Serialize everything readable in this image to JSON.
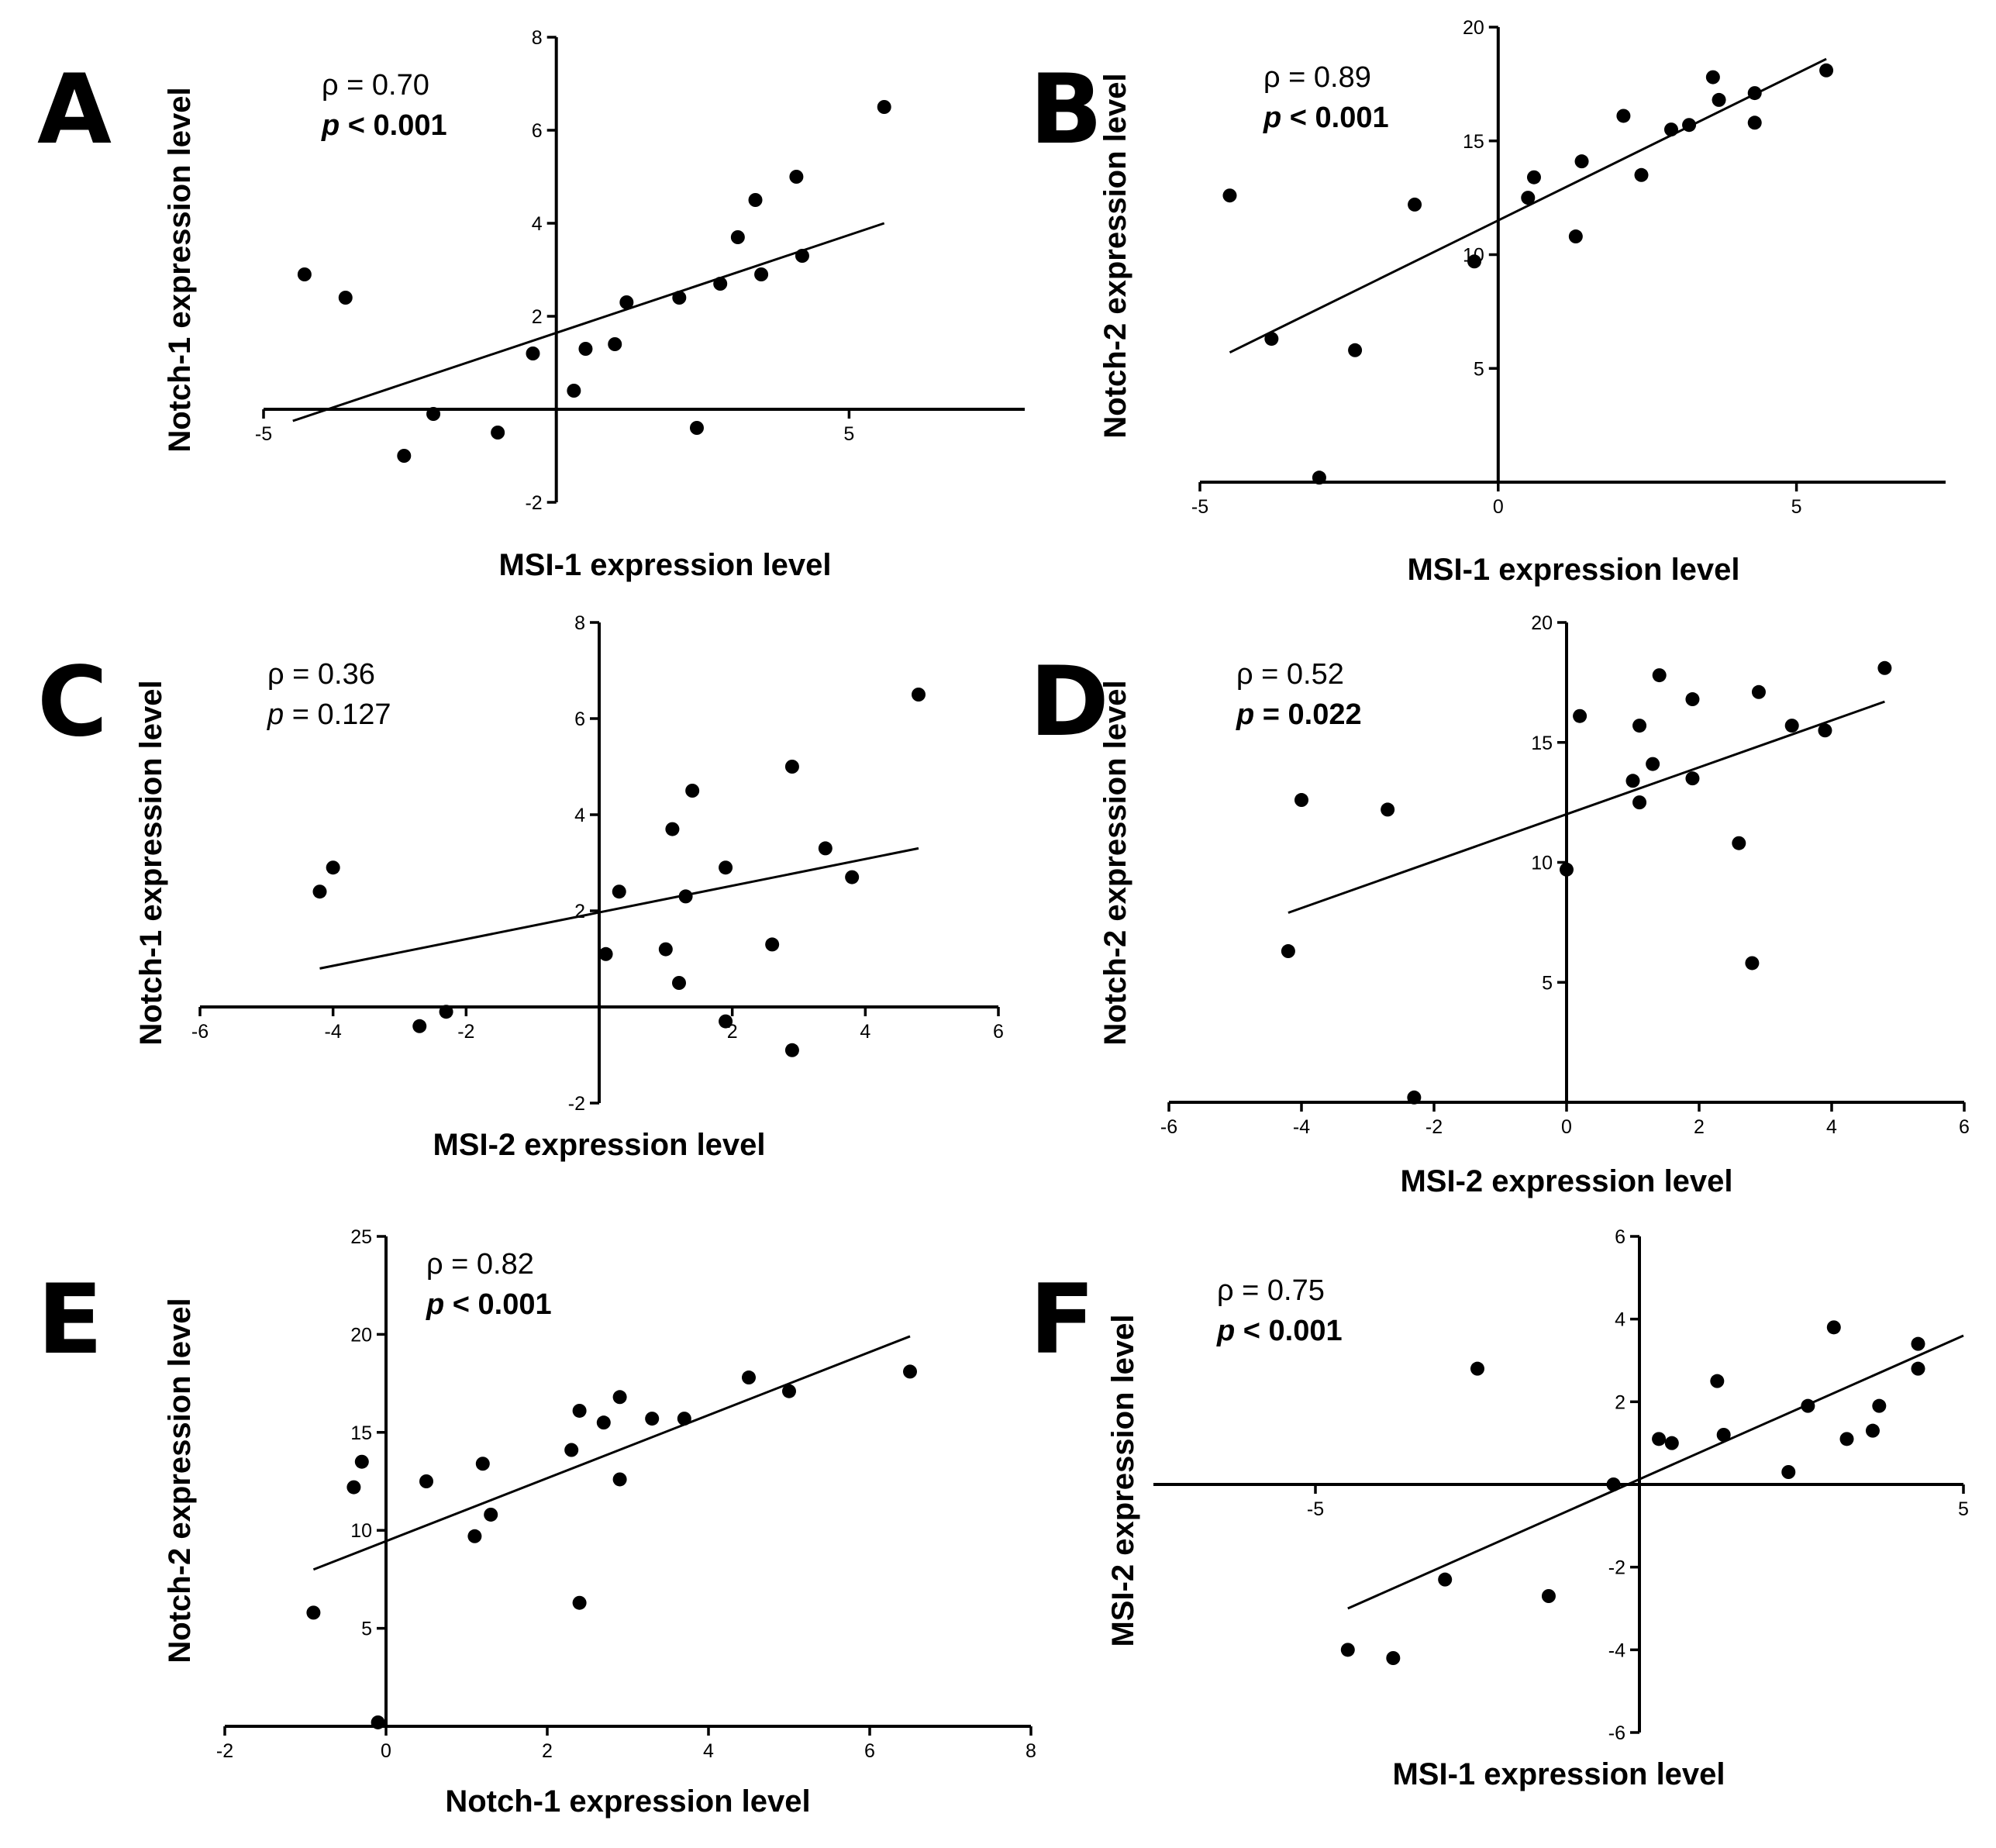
{
  "chart_data": [
    {
      "panel": "A",
      "type": "scatter",
      "xlabel": "MSI-1 expression level",
      "ylabel": "Notch-1 expression level",
      "xlim": [
        -5,
        8
      ],
      "ylim": [
        -2,
        8
      ],
      "xticks": [
        -5,
        0,
        5
      ],
      "xtick_labels": [
        "-5",
        "",
        "5"
      ],
      "yticks": [
        -2,
        0,
        2,
        4,
        6,
        8
      ],
      "ytick_labels": [
        "-2",
        "",
        "2",
        "4",
        "6",
        "8"
      ],
      "stats": {
        "rho": "ρ = 0.70",
        "p": "< 0.001",
        "p_bold": true
      },
      "points": [
        [
          -4.3,
          2.9
        ],
        [
          -3.6,
          2.4
        ],
        [
          -2.1,
          -0.1
        ],
        [
          -2.6,
          -1.0
        ],
        [
          -1.0,
          -0.5
        ],
        [
          -0.4,
          1.2
        ],
        [
          0.3,
          0.4
        ],
        [
          0.5,
          1.3
        ],
        [
          1.0,
          1.4
        ],
        [
          1.2,
          2.3
        ],
        [
          2.1,
          2.4
        ],
        [
          2.4,
          -0.4
        ],
        [
          2.8,
          2.7
        ],
        [
          3.1,
          3.7
        ],
        [
          3.4,
          4.5
        ],
        [
          3.5,
          2.9
        ],
        [
          4.1,
          5.0
        ],
        [
          4.2,
          3.3
        ],
        [
          5.6,
          6.5
        ]
      ],
      "fit": [
        [
          -4.5,
          -0.25
        ],
        [
          5.6,
          4.0
        ]
      ]
    },
    {
      "panel": "B",
      "type": "scatter",
      "xlabel": "MSI-1 expression level",
      "ylabel": "Notch-2 expression level",
      "xlim": [
        -5,
        7.5
      ],
      "ylim": [
        0,
        20
      ],
      "xticks": [
        -5,
        0,
        5
      ],
      "xtick_labels": [
        "-5",
        "0",
        "5"
      ],
      "yticks": [
        5,
        10,
        15,
        20
      ],
      "ytick_labels": [
        "5",
        "10",
        "15",
        "20"
      ],
      "stats": {
        "rho": "ρ = 0.89",
        "p": "< 0.001",
        "p_bold": true
      },
      "points": [
        [
          -4.5,
          12.6
        ],
        [
          -3.8,
          6.3
        ],
        [
          -3.0,
          0.2
        ],
        [
          -2.4,
          5.8
        ],
        [
          -1.4,
          12.2
        ],
        [
          -0.4,
          9.7
        ],
        [
          0.5,
          12.5
        ],
        [
          0.6,
          13.4
        ],
        [
          1.4,
          14.1
        ],
        [
          1.3,
          10.8
        ],
        [
          2.1,
          16.1
        ],
        [
          2.4,
          13.5
        ],
        [
          2.9,
          15.5
        ],
        [
          3.2,
          15.7
        ],
        [
          3.6,
          17.8
        ],
        [
          3.7,
          16.8
        ],
        [
          4.3,
          17.1
        ],
        [
          4.3,
          15.8
        ],
        [
          5.5,
          18.1
        ]
      ],
      "fit": [
        [
          -4.5,
          5.7
        ],
        [
          5.5,
          18.6
        ]
      ]
    },
    {
      "panel": "C",
      "type": "scatter",
      "xlabel": "MSI-2 expression level",
      "ylabel": "Notch-1 expression level",
      "xlim": [
        -6,
        6
      ],
      "ylim": [
        -2,
        8
      ],
      "xticks": [
        -6,
        -4,
        -2,
        0,
        2,
        4,
        6
      ],
      "xtick_labels": [
        "-6",
        "-4",
        "-2",
        "",
        "2",
        "4",
        "6"
      ],
      "yticks": [
        -2,
        0,
        2,
        4,
        6,
        8
      ],
      "ytick_labels": [
        "-2",
        "",
        "2",
        "4",
        "6",
        "8"
      ],
      "stats": {
        "rho": "ρ = 0.36",
        "p": "= 0.127",
        "p_bold": false
      },
      "points": [
        [
          -4.2,
          2.4
        ],
        [
          -4.0,
          2.9
        ],
        [
          -2.7,
          -0.4
        ],
        [
          -2.3,
          -0.1
        ],
        [
          0.1,
          1.1
        ],
        [
          0.3,
          2.4
        ],
        [
          1.0,
          1.2
        ],
        [
          1.1,
          3.7
        ],
        [
          1.2,
          0.5
        ],
        [
          1.3,
          2.3
        ],
        [
          1.4,
          4.5
        ],
        [
          1.9,
          2.9
        ],
        [
          1.9,
          -0.3
        ],
        [
          2.6,
          1.3
        ],
        [
          2.9,
          5.0
        ],
        [
          2.9,
          -0.9
        ],
        [
          3.4,
          3.3
        ],
        [
          3.8,
          2.7
        ],
        [
          4.8,
          6.5
        ]
      ],
      "fit": [
        [
          -4.2,
          0.8
        ],
        [
          4.8,
          3.3
        ]
      ]
    },
    {
      "panel": "D",
      "type": "scatter",
      "xlabel": "MSI-2 expression level",
      "ylabel": "Notch-2 expression level",
      "xlim": [
        -6,
        6
      ],
      "ylim": [
        0,
        20
      ],
      "xticks": [
        -6,
        -4,
        -2,
        0,
        2,
        4,
        6
      ],
      "xtick_labels": [
        "-6",
        "-4",
        "-2",
        "0",
        "2",
        "4",
        "6"
      ],
      "yticks": [
        5,
        10,
        15,
        20
      ],
      "ytick_labels": [
        "5",
        "10",
        "15",
        "20"
      ],
      "stats": {
        "rho": "ρ = 0.52",
        "p": "= 0.022",
        "p_bold": true
      },
      "points": [
        [
          -4.2,
          6.3
        ],
        [
          -4.0,
          12.6
        ],
        [
          -2.7,
          12.2
        ],
        [
          -2.3,
          0.2
        ],
        [
          0.0,
          9.7
        ],
        [
          0.2,
          16.1
        ],
        [
          1.0,
          13.4
        ],
        [
          1.1,
          15.7
        ],
        [
          1.1,
          12.5
        ],
        [
          1.3,
          14.1
        ],
        [
          1.4,
          17.8
        ],
        [
          1.9,
          16.8
        ],
        [
          1.9,
          13.5
        ],
        [
          2.6,
          10.8
        ],
        [
          2.8,
          5.8
        ],
        [
          2.9,
          17.1
        ],
        [
          3.4,
          15.7
        ],
        [
          3.9,
          15.5
        ],
        [
          4.8,
          18.1
        ]
      ],
      "fit": [
        [
          -4.2,
          7.9
        ],
        [
          4.8,
          16.7
        ]
      ]
    },
    {
      "panel": "E",
      "type": "scatter",
      "xlabel": "Notch-1 expression level",
      "ylabel": "Notch-2 expression level",
      "xlim": [
        -2,
        8
      ],
      "ylim": [
        0,
        25
      ],
      "xticks": [
        -2,
        0,
        2,
        4,
        6,
        8
      ],
      "xtick_labels": [
        "-2",
        "0",
        "2",
        "4",
        "6",
        "8"
      ],
      "yticks": [
        5,
        10,
        15,
        20,
        25
      ],
      "ytick_labels": [
        "5",
        "10",
        "15",
        "20",
        "25"
      ],
      "stats": {
        "rho": "ρ = 0.82",
        "p": "< 0.001",
        "p_bold": true
      },
      "points": [
        [
          -0.9,
          5.8
        ],
        [
          -0.4,
          12.2
        ],
        [
          -0.3,
          13.5
        ],
        [
          -0.1,
          0.2
        ],
        [
          0.5,
          12.5
        ],
        [
          1.1,
          9.7
        ],
        [
          1.2,
          13.4
        ],
        [
          1.3,
          10.8
        ],
        [
          2.3,
          14.1
        ],
        [
          2.4,
          16.1
        ],
        [
          2.4,
          6.3
        ],
        [
          2.7,
          15.5
        ],
        [
          2.9,
          12.6
        ],
        [
          2.9,
          16.8
        ],
        [
          3.3,
          15.7
        ],
        [
          3.7,
          15.7
        ],
        [
          4.5,
          17.8
        ],
        [
          5.0,
          17.1
        ],
        [
          6.5,
          18.1
        ]
      ],
      "fit": [
        [
          -0.9,
          8.0
        ],
        [
          6.5,
          19.9
        ]
      ]
    },
    {
      "panel": "F",
      "type": "scatter",
      "xlabel": "MSI-1 expression level",
      "ylabel": "MSI-2 expression level",
      "xlim": [
        -7.5,
        5
      ],
      "ylim": [
        -6,
        6
      ],
      "xticks": [
        -5,
        0,
        5
      ],
      "xtick_labels": [
        "-5",
        "",
        "5"
      ],
      "yticks": [
        -6,
        -4,
        -2,
        0,
        2,
        4,
        6
      ],
      "ytick_labels": [
        "-6",
        "-4",
        "-2",
        "",
        "2",
        "4",
        "6"
      ],
      "stats": {
        "rho": "ρ = 0.75",
        "p": "< 0.001",
        "p_bold": true
      },
      "points": [
        [
          -4.5,
          -4.0
        ],
        [
          -3.8,
          -4.2
        ],
        [
          -3.0,
          -2.3
        ],
        [
          -2.5,
          2.8
        ],
        [
          -1.4,
          -2.7
        ],
        [
          -0.4,
          0.0
        ],
        [
          0.3,
          1.1
        ],
        [
          0.5,
          1.0
        ],
        [
          1.2,
          2.5
        ],
        [
          1.3,
          1.2
        ],
        [
          2.3,
          0.3
        ],
        [
          2.6,
          1.9
        ],
        [
          3.0,
          3.8
        ],
        [
          3.2,
          1.1
        ],
        [
          3.6,
          1.3
        ],
        [
          3.7,
          1.9
        ],
        [
          4.3,
          3.4
        ],
        [
          4.3,
          2.8
        ]
      ],
      "fit": [
        [
          -4.5,
          -3.0
        ],
        [
          5.0,
          3.6
        ]
      ]
    }
  ]
}
